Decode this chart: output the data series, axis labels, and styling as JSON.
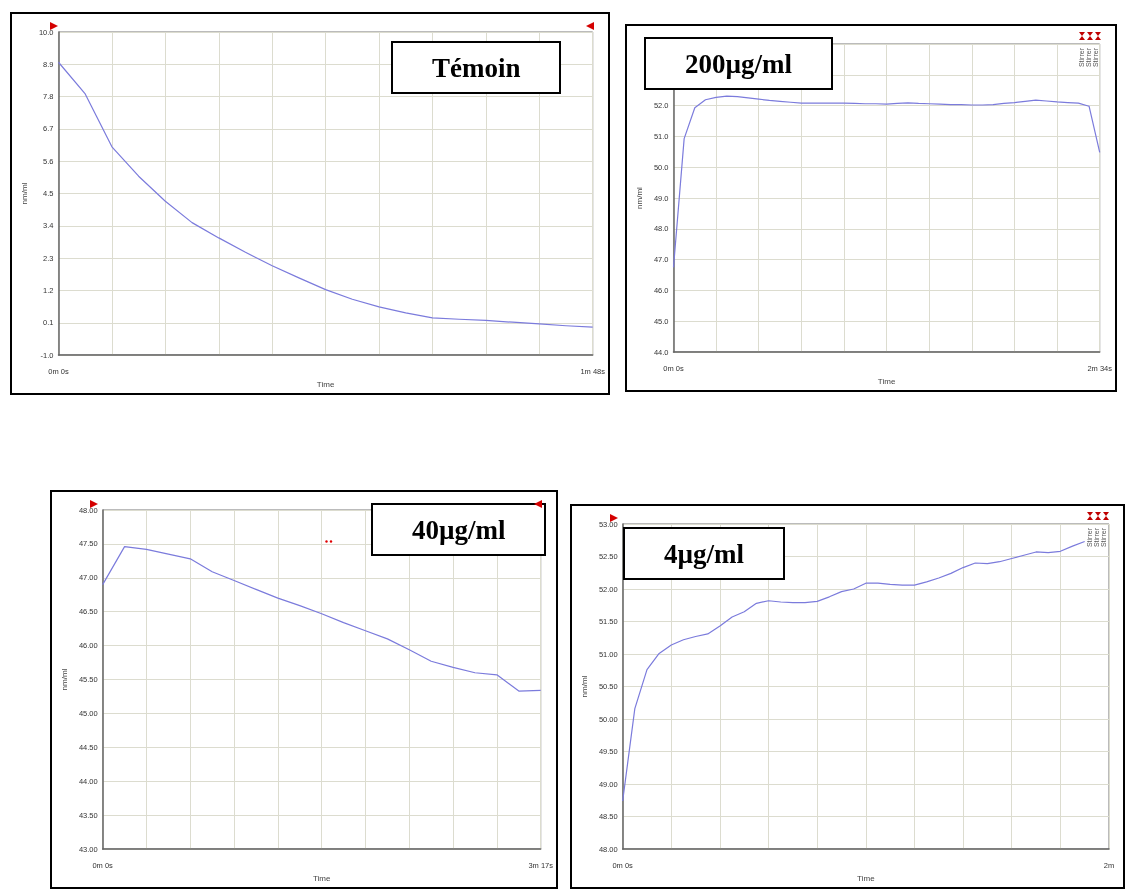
{
  "chart_data": [
    {
      "type": "line",
      "title": "Témoin",
      "xlabel": "Time",
      "ylabel": "nm/ml",
      "color": "#7b7bdc",
      "grid": true,
      "categories": [
        "0m 0s",
        null,
        null,
        null,
        null,
        null,
        null,
        null,
        null,
        null,
        null,
        null,
        null,
        null,
        null,
        null,
        null,
        null,
        null,
        null,
        "1m 48s"
      ],
      "values": [
        8.97,
        7.89,
        6.09,
        5.09,
        4.24,
        3.51,
        2.99,
        2.5,
        2.04,
        1.63,
        1.23,
        0.9,
        0.64,
        0.44,
        0.27,
        0.22,
        0.18,
        0.12,
        0.06,
        0.0,
        -0.05
      ],
      "ylim": [
        -1,
        10
      ],
      "yticks": [
        {
          "value": -1,
          "label": "-1.0"
        },
        0.1,
        1.2,
        2.3,
        3.4,
        4.5,
        5.6,
        6.7,
        7.8,
        8.9,
        {
          "value": 10,
          "label": "10.0"
        }
      ]
    },
    {
      "type": "line",
      "title": "200µg/ml",
      "xlabel": "Time",
      "ylabel": "nm/ml",
      "color": "#7b7bdc",
      "grid": true,
      "annotations": [
        "Stirrer",
        "Stirrer",
        "Stirrer"
      ],
      "categories": [
        "0m 0s",
        null,
        null,
        null,
        null,
        null,
        null,
        null,
        null,
        null,
        null,
        null,
        null,
        null,
        null,
        null,
        null,
        null,
        null,
        null,
        null,
        null,
        null,
        null,
        null,
        null,
        null,
        null,
        null,
        null,
        null,
        null,
        null,
        null,
        null,
        null,
        null,
        null,
        null,
        null,
        "2m 34s"
      ],
      "values": [
        46.75,
        50.93,
        51.93,
        52.19,
        52.27,
        52.31,
        52.29,
        52.25,
        52.21,
        52.17,
        52.14,
        52.11,
        52.08,
        52.08,
        52.08,
        52.08,
        52.08,
        52.07,
        52.06,
        52.06,
        52.05,
        52.07,
        52.09,
        52.07,
        52.06,
        52.05,
        52.03,
        52.03,
        52.02,
        52.02,
        52.03,
        52.07,
        52.1,
        52.14,
        52.18,
        52.15,
        52.12,
        52.1,
        52.08,
        51.98,
        50.48
      ],
      "ylim": [
        44,
        54
      ],
      "yticks": [
        {
          "value": 44,
          "label": "44.0"
        },
        {
          "value": 45,
          "label": "45.0"
        },
        {
          "value": 46,
          "label": "46.0"
        },
        {
          "value": 47,
          "label": "47.0"
        },
        {
          "value": 48,
          "label": "48.0"
        },
        {
          "value": 49,
          "label": "49.0"
        },
        {
          "value": 50,
          "label": "50.0"
        },
        {
          "value": 51,
          "label": "51.0"
        },
        {
          "value": 52,
          "label": "52.0"
        },
        {
          "value": 53,
          "label": null
        },
        {
          "value": 54,
          "label": null
        }
      ]
    },
    {
      "type": "line",
      "title": "40µg/ml",
      "xlabel": "Time",
      "ylabel": "nm/ml",
      "color": "#7b7bdc",
      "grid": true,
      "categories": [
        "0m 0s",
        null,
        null,
        null,
        null,
        null,
        null,
        null,
        null,
        null,
        null,
        null,
        null,
        null,
        null,
        null,
        null,
        null,
        null,
        null,
        "3m 17s"
      ],
      "values": [
        46.9,
        47.46,
        47.42,
        47.35,
        47.28,
        47.09,
        46.96,
        46.83,
        46.7,
        46.59,
        46.47,
        46.34,
        46.22,
        46.1,
        45.94,
        45.77,
        45.68,
        45.6,
        45.57,
        45.33,
        45.34
      ],
      "ylim": [
        43,
        48
      ],
      "yticks": [
        {
          "value": 43,
          "label": "43.00"
        },
        {
          "value": 43.5,
          "label": "43.50"
        },
        {
          "value": 44,
          "label": "44.00"
        },
        {
          "value": 44.5,
          "label": "44.50"
        },
        {
          "value": 45,
          "label": "45.00"
        },
        {
          "value": 45.5,
          "label": "45.50"
        },
        {
          "value": 46,
          "label": "46.00"
        },
        {
          "value": 46.5,
          "label": "46.50"
        },
        {
          "value": 47,
          "label": "47.00"
        },
        {
          "value": 47.5,
          "label": "47.50"
        },
        {
          "value": 48,
          "label": "48.00"
        }
      ]
    },
    {
      "type": "line",
      "title": "4µg/ml",
      "xlabel": "Time",
      "ylabel": "nm/ml",
      "color": "#7b7bdc",
      "grid": true,
      "annotations": [
        "Stirrer",
        "Stirrer",
        "Stirrer"
      ],
      "categories": [
        "0m 0s",
        null,
        null,
        null,
        null,
        null,
        null,
        null,
        null,
        null,
        null,
        null,
        null,
        null,
        null,
        null,
        null,
        null,
        null,
        null,
        null,
        null,
        null,
        null,
        null,
        null,
        null,
        null,
        null,
        null,
        null,
        null,
        null,
        null,
        null,
        null,
        null,
        null,
        null,
        null,
        "2m"
      ],
      "values": [
        48.74,
        50.16,
        50.76,
        51.01,
        51.14,
        51.22,
        51.27,
        51.31,
        51.43,
        51.57,
        51.65,
        51.78,
        51.82,
        51.8,
        51.79,
        51.79,
        51.81,
        51.88,
        51.96,
        52.0,
        52.09,
        52.09,
        52.07,
        52.06,
        52.06,
        52.11,
        52.17,
        52.24,
        52.33,
        52.4,
        52.39,
        52.42,
        52.47,
        52.52,
        52.57,
        52.56,
        52.58,
        52.66,
        52.73,
        null,
        null
      ],
      "ylim": [
        48,
        53
      ],
      "yticks": [
        {
          "value": 48,
          "label": "48.00"
        },
        {
          "value": 48.5,
          "label": "48.50"
        },
        {
          "value": 49,
          "label": "49.00"
        },
        {
          "value": 49.5,
          "label": "49.50"
        },
        {
          "value": 50,
          "label": "50.00"
        },
        {
          "value": 50.5,
          "label": "50.50"
        },
        {
          "value": 51,
          "label": "51.00"
        },
        {
          "value": 51.5,
          "label": "51.50"
        },
        {
          "value": 52,
          "label": "52.00"
        },
        {
          "value": 52.5,
          "label": "52.50"
        },
        {
          "value": 53,
          "label": "53.00"
        }
      ]
    }
  ]
}
